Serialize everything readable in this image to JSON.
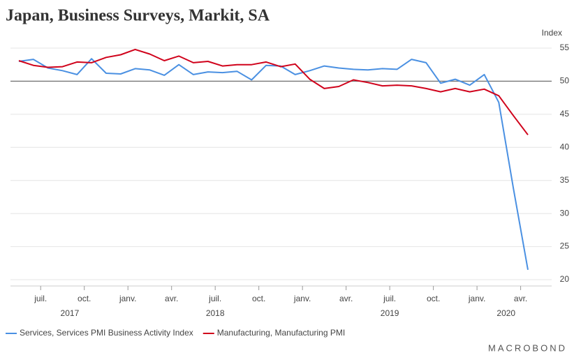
{
  "chart_data": {
    "type": "line",
    "title": "Japan, Business Surveys, Markit, SA",
    "y_axis_label": "Index",
    "source": "MACROBOND",
    "x": [
      "2017-05",
      "2017-06",
      "2017-07",
      "2017-08",
      "2017-09",
      "2017-10",
      "2017-11",
      "2017-12",
      "2018-01",
      "2018-02",
      "2018-03",
      "2018-04",
      "2018-05",
      "2018-06",
      "2018-07",
      "2018-08",
      "2018-09",
      "2018-10",
      "2018-11",
      "2018-12",
      "2019-01",
      "2019-02",
      "2019-03",
      "2019-04",
      "2019-05",
      "2019-06",
      "2019-07",
      "2019-08",
      "2019-09",
      "2019-10",
      "2019-11",
      "2019-12",
      "2020-01",
      "2020-02",
      "2020-03",
      "2020-04"
    ],
    "series": [
      {
        "name": "Services, Services PMI Business Activity Index",
        "color": "#4a90e2",
        "values": [
          53.0,
          53.3,
          52.0,
          51.6,
          51.0,
          53.4,
          51.2,
          51.1,
          51.9,
          51.7,
          50.9,
          52.5,
          51.0,
          51.4,
          51.3,
          51.5,
          50.2,
          52.4,
          52.3,
          51.0,
          51.6,
          52.3,
          52.0,
          51.8,
          51.7,
          51.9,
          51.8,
          53.3,
          52.8,
          49.7,
          50.3,
          49.4,
          51.0,
          46.8,
          33.8,
          21.5
        ]
      },
      {
        "name": "Manufacturing, Manufacturing PMI",
        "color": "#d0021b",
        "values": [
          53.1,
          52.4,
          52.1,
          52.2,
          52.9,
          52.8,
          53.6,
          54.0,
          54.8,
          54.1,
          53.1,
          53.8,
          52.8,
          53.0,
          52.3,
          52.5,
          52.5,
          52.9,
          52.2,
          52.6,
          50.3,
          48.9,
          49.2,
          50.2,
          49.8,
          49.3,
          49.4,
          49.3,
          48.9,
          48.4,
          48.9,
          48.4,
          48.8,
          47.8,
          44.8,
          41.9
        ]
      }
    ],
    "xticks": [
      {
        "value": "2017-07",
        "label": "juil."
      },
      {
        "value": "2017-10",
        "label": "oct."
      },
      {
        "value": "2018-01",
        "label": "janv."
      },
      {
        "value": "2018-04",
        "label": "avr."
      },
      {
        "value": "2018-07",
        "label": "juil."
      },
      {
        "value": "2018-10",
        "label": "oct."
      },
      {
        "value": "2019-01",
        "label": "janv."
      },
      {
        "value": "2019-04",
        "label": "avr."
      },
      {
        "value": "2019-07",
        "label": "juil."
      },
      {
        "value": "2019-10",
        "label": "oct."
      },
      {
        "value": "2020-01",
        "label": "janv."
      },
      {
        "value": "2020-04",
        "label": "avr."
      }
    ],
    "years": [
      2017,
      2018,
      2019,
      2020
    ],
    "ylim": [
      20,
      55
    ],
    "yticks": [
      20,
      25,
      30,
      35,
      40,
      45,
      50,
      55
    ],
    "reference_line": 50,
    "grid": true,
    "legend": "bottom"
  }
}
